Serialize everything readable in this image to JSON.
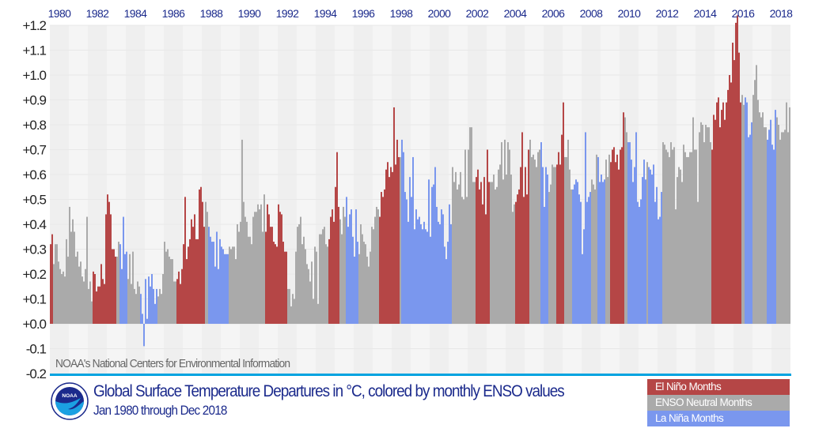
{
  "chart_data": {
    "type": "bar",
    "title": "Global Surface Temperature Departures in °C, colored by monthly ENSO values",
    "subtitle": "Jan 1980 through Dec 2018",
    "source": "NOAA's National Centers for Environmental Information",
    "ylim": [
      -0.2,
      1.2
    ],
    "yticks": [
      "+1.2",
      "+1.1",
      "+1.0",
      "+0.9",
      "+0.8",
      "+0.7",
      "+0.6",
      "+0.5",
      "+0.4",
      "+0.3",
      "+0.2",
      "+0.1",
      "+0.0",
      "-0.1",
      "-0.2"
    ],
    "ytick_values": [
      1.2,
      1.1,
      1.0,
      0.9,
      0.8,
      0.7,
      0.6,
      0.5,
      0.4,
      0.3,
      0.2,
      0.1,
      0.0,
      -0.1,
      -0.2
    ],
    "xticks": [
      "1980",
      "1982",
      "1984",
      "1986",
      "1988",
      "1990",
      "1992",
      "1994",
      "1996",
      "1998",
      "2000",
      "2002",
      "2004",
      "2006",
      "2008",
      "2010",
      "2012",
      "2014",
      "2016",
      "2018"
    ],
    "colors": {
      "E": "#b54646",
      "N": "#aaaaaa",
      "L": "#7a97ee"
    },
    "legend": [
      {
        "key": "E",
        "label": "El Niño Months"
      },
      {
        "key": "N",
        "label": "ENSO Neutral Months"
      },
      {
        "key": "L",
        "label": "La Niña Months"
      }
    ],
    "legend_placement": "bottom-right",
    "years": [
      {
        "year": 1980,
        "enso": "EENNNNNNNNNN",
        "values": [
          0.32,
          0.36,
          0.24,
          0.32,
          0.32,
          0.25,
          0.22,
          0.2,
          0.21,
          0.19,
          0.34,
          0.27
        ]
      },
      {
        "year": 1981,
        "enso": "NNNNNNNNNNNN",
        "values": [
          0.47,
          0.37,
          0.42,
          0.37,
          0.27,
          0.29,
          0.23,
          0.25,
          0.19,
          0.17,
          0.22,
          0.43
        ]
      },
      {
        "year": 1982,
        "enso": "NNNEEEEEEEEE",
        "values": [
          0.14,
          0.17,
          0.09,
          0.21,
          0.2,
          0.13,
          0.15,
          0.15,
          0.24,
          0.18,
          0.16,
          0.44
        ]
      },
      {
        "year": 1983,
        "enso": "EEEEEENNLLLL",
        "values": [
          0.52,
          0.49,
          0.44,
          0.3,
          0.3,
          0.27,
          0.27,
          0.33,
          0.32,
          0.22,
          0.43,
          0.28
        ]
      },
      {
        "year": 1984,
        "enso": "LNNNNNNNNLLL",
        "values": [
          0.29,
          0.18,
          0.28,
          0.16,
          0.29,
          0.14,
          0.12,
          0.17,
          0.15,
          0.12,
          0.04,
          -0.09
        ]
      },
      {
        "year": 1985,
        "enso": "LLLLLLLLNNNN",
        "values": [
          0.18,
          0.02,
          0.19,
          0.15,
          0.2,
          0.14,
          0.08,
          0.14,
          0.11,
          0.14,
          0.12,
          0.2
        ]
      },
      {
        "year": 1986,
        "enso": "NNNNNNNNEEEE",
        "values": [
          0.33,
          0.29,
          0.3,
          0.27,
          0.26,
          0.26,
          0.17,
          0.17,
          0.18,
          0.21,
          0.16,
          0.22
        ]
      },
      {
        "year": 1987,
        "enso": "EEEEEEEEEEEE",
        "values": [
          0.32,
          0.51,
          0.26,
          0.31,
          0.34,
          0.42,
          0.39,
          0.44,
          0.34,
          0.34,
          0.54,
          0.55
        ]
      },
      {
        "year": 1988,
        "enso": "EENNLLLLLLLL",
        "values": [
          0.49,
          0.39,
          0.49,
          0.45,
          0.39,
          0.35,
          0.33,
          0.33,
          0.23,
          0.37,
          0.22,
          0.34
        ]
      },
      {
        "year": 1989,
        "enso": "LLLLLNNNNNNN",
        "values": [
          0.31,
          0.3,
          0.28,
          0.28,
          0.28,
          0.31,
          0.3,
          0.31,
          0.31,
          0.26,
          0.4,
          0.37
        ]
      },
      {
        "year": 1990,
        "enso": "NNNNNNNNNNNN",
        "values": [
          0.41,
          0.74,
          0.49,
          0.43,
          0.41,
          0.35,
          0.35,
          0.32,
          0.43,
          0.45,
          0.45,
          0.48
        ]
      },
      {
        "year": 1991,
        "enso": "NNNNEEEEEEEE",
        "values": [
          0.46,
          0.48,
          0.37,
          0.52,
          0.37,
          0.48,
          0.44,
          0.39,
          0.39,
          0.33,
          0.32,
          0.31
        ]
      },
      {
        "year": 1992,
        "enso": "EEEEEENNNNNN",
        "values": [
          0.48,
          0.45,
          0.44,
          0.33,
          0.29,
          0.29,
          0.14,
          0.14,
          0.07,
          0.12,
          0.1,
          0.29
        ]
      },
      {
        "year": 1993,
        "enso": "NNNNNNNNNNNN",
        "values": [
          0.39,
          0.4,
          0.43,
          0.32,
          0.35,
          0.3,
          0.24,
          0.22,
          0.17,
          0.25,
          0.1,
          0.31
        ]
      },
      {
        "year": 1994,
        "enso": "NNNNNNNNEEEE",
        "values": [
          0.29,
          0.08,
          0.36,
          0.36,
          0.38,
          0.39,
          0.32,
          0.31,
          0.34,
          0.43,
          0.46,
          0.41
        ]
      },
      {
        "year": 1995,
        "enso": "EEENNNNLLLLL",
        "values": [
          0.55,
          0.69,
          0.47,
          0.42,
          0.36,
          0.47,
          0.43,
          0.51,
          0.39,
          0.44,
          0.46,
          0.35
        ]
      },
      {
        "year": 1996,
        "enso": "LLLNNNNNNNNN",
        "values": [
          0.27,
          0.46,
          0.33,
          0.28,
          0.4,
          0.36,
          0.33,
          0.32,
          0.27,
          0.23,
          0.29,
          0.39
        ]
      },
      {
        "year": 1997,
        "enso": "NNNNEEEEEEEE",
        "values": [
          0.38,
          0.43,
          0.47,
          0.46,
          0.43,
          0.53,
          0.51,
          0.54,
          0.62,
          0.65,
          0.59,
          0.63
        ]
      },
      {
        "year": 1998,
        "enso": "EEEEENLLLLLL",
        "values": [
          0.61,
          0.87,
          0.64,
          0.74,
          0.67,
          0.67,
          0.74,
          0.69,
          0.53,
          0.5,
          0.41,
          0.59
        ]
      },
      {
        "year": 1999,
        "enso": "LLLLLLLLLLLL",
        "values": [
          0.51,
          0.67,
          0.38,
          0.46,
          0.42,
          0.43,
          0.4,
          0.38,
          0.41,
          0.38,
          0.37,
          0.58
        ]
      },
      {
        "year": 2000,
        "enso": "LLLLLLLLLLLL",
        "values": [
          0.35,
          0.55,
          0.56,
          0.63,
          0.47,
          0.41,
          0.4,
          0.46,
          0.44,
          0.31,
          0.26,
          0.33
        ]
      },
      {
        "year": 2001,
        "enso": "LLNNNNNNNNNN",
        "values": [
          0.48,
          0.4,
          0.63,
          0.57,
          0.61,
          0.54,
          0.56,
          0.61,
          0.51,
          0.5,
          0.7,
          0.51
        ]
      },
      {
        "year": 2002,
        "enso": "NNNNNEEEEEEE",
        "values": [
          0.7,
          0.79,
          0.79,
          0.57,
          0.57,
          0.59,
          0.62,
          0.54,
          0.57,
          0.48,
          0.59,
          0.44
        ]
      },
      {
        "year": 2003,
        "enso": "EENNNNNNNNNN",
        "values": [
          0.7,
          0.57,
          0.57,
          0.57,
          0.6,
          0.54,
          0.55,
          0.62,
          0.64,
          0.73,
          0.58,
          0.74
        ]
      },
      {
        "year": 2004,
        "enso": "NNNNNNEEEEEE",
        "values": [
          0.6,
          0.73,
          0.7,
          0.6,
          0.45,
          0.48,
          0.49,
          0.52,
          0.54,
          0.63,
          0.77,
          0.51
        ]
      },
      {
        "year": 2005,
        "enso": "EEENNNNNNNLL",
        "values": [
          0.63,
          0.52,
          0.7,
          0.74,
          0.67,
          0.68,
          0.66,
          0.63,
          0.69,
          0.7,
          0.73,
          0.63
        ]
      },
      {
        "year": 2006,
        "enso": "LLLNNNNNEEEE",
        "values": [
          0.47,
          0.63,
          0.6,
          0.53,
          0.56,
          0.64,
          0.63,
          0.63,
          0.64,
          0.69,
          0.64,
          0.76
        ]
      },
      {
        "year": 2007,
        "enso": "ENNNNNLLLLLL",
        "values": [
          0.89,
          0.67,
          0.67,
          0.74,
          0.62,
          0.54,
          0.54,
          0.56,
          0.58,
          0.57,
          0.52,
          0.49
        ]
      },
      {
        "year": 2008,
        "enso": "LLLLLLNNNNLL",
        "values": [
          0.28,
          0.38,
          0.77,
          0.49,
          0.51,
          0.53,
          0.58,
          0.56,
          0.54,
          0.68,
          0.67,
          0.57
        ]
      },
      {
        "year": 2009,
        "enso": "LLLNNNEEEEEE",
        "values": [
          0.6,
          0.57,
          0.58,
          0.66,
          0.59,
          0.68,
          0.65,
          0.7,
          0.71,
          0.65,
          0.68,
          0.62
        ]
      },
      {
        "year": 2010,
        "enso": "EEENNLLLLLLL",
        "values": [
          0.7,
          0.71,
          0.85,
          0.83,
          0.77,
          0.73,
          0.73,
          0.66,
          0.57,
          0.63,
          0.77,
          0.49
        ]
      },
      {
        "year": 2011,
        "enso": "LLLLLNLLLLLL",
        "values": [
          0.47,
          0.5,
          0.59,
          0.66,
          0.58,
          0.65,
          0.63,
          0.62,
          0.6,
          0.64,
          0.49,
          0.55
        ]
      },
      {
        "year": 2012,
        "enso": "LLLNNNNNNNNN",
        "values": [
          0.42,
          0.43,
          0.53,
          0.73,
          0.72,
          0.7,
          0.69,
          0.67,
          0.73,
          0.7,
          0.71,
          0.46
        ]
      },
      {
        "year": 2013,
        "enso": "NNNNNNNNNNNN",
        "values": [
          0.59,
          0.63,
          0.62,
          0.57,
          0.72,
          0.69,
          0.67,
          0.67,
          0.69,
          0.69,
          0.83,
          0.7
        ]
      },
      {
        "year": 2014,
        "enso": "NNNNNNNNNNEE",
        "values": [
          0.7,
          0.49,
          0.77,
          0.81,
          0.8,
          0.73,
          0.8,
          0.79,
          0.79,
          0.73,
          0.7,
          0.84
        ]
      },
      {
        "year": 2015,
        "enso": "EEEEEEEEEEEE",
        "values": [
          0.82,
          0.89,
          0.91,
          0.79,
          0.86,
          0.89,
          0.82,
          0.89,
          0.94,
          1.0,
          0.97,
          1.13
        ]
      },
      {
        "year": 2016,
        "enso": "EEEEENNLLLLL",
        "values": [
          1.06,
          1.21,
          1.24,
          1.09,
          0.89,
          0.92,
          0.88,
          0.91,
          0.89,
          0.75,
          0.76,
          0.81
        ]
      },
      {
        "year": 2017,
        "enso": "NNNNNNNNNLLL",
        "values": [
          0.92,
          0.98,
          1.04,
          0.9,
          0.85,
          0.83,
          0.85,
          0.79,
          0.79,
          0.74,
          0.78,
          0.82
        ]
      },
      {
        "year": 2018,
        "enso": "LLLNNNNNNNNN",
        "values": [
          0.72,
          0.7,
          0.86,
          0.83,
          0.8,
          0.74,
          0.77,
          0.77,
          0.78,
          0.89,
          0.77,
          0.87
        ]
      }
    ]
  },
  "logo": {
    "text": "NOAA"
  }
}
